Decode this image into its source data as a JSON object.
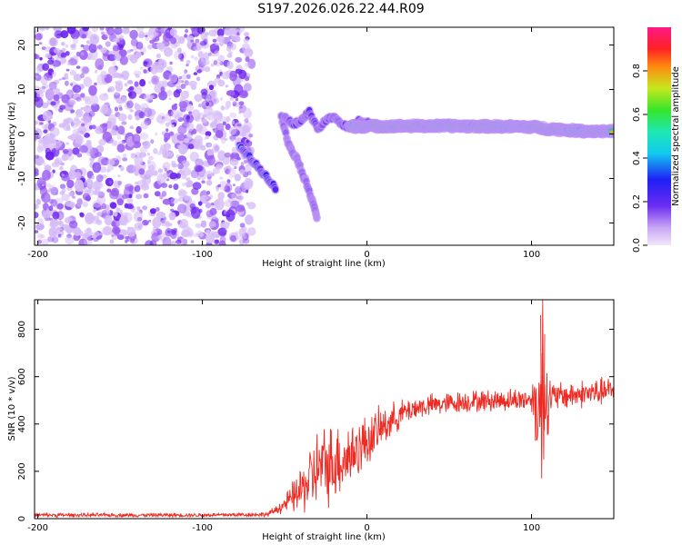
{
  "title": "S197.2026.026.22.44.R09",
  "colors": {
    "snr_line": "#ee2a22",
    "noise_purple": "#7a2cf0",
    "noise_light": "#c9a6f5"
  },
  "chart_data": [
    {
      "type": "heatmap",
      "title": "S197.2026.026.22.44.R09",
      "xlabel": "Height of straight line (km)",
      "ylabel": "Frequency (Hz)",
      "xlim": [
        -202,
        150
      ],
      "ylim": [
        -25,
        24
      ],
      "xticks": [
        -200,
        -100,
        0,
        100
      ],
      "yticks": [
        -20,
        -10,
        0,
        10,
        20
      ],
      "xtick_labels": [
        "-200",
        "-100",
        "0",
        "100"
      ],
      "ytick_labels": [
        "-20",
        "-10",
        "0",
        "10",
        "20"
      ],
      "noise_region_x": [
        -202,
        -70
      ],
      "colorbar": {
        "label": "Normalized spectral amplitude",
        "range": [
          0,
          1
        ],
        "ticks": [
          0.0,
          0.2,
          0.4,
          0.6,
          0.8
        ],
        "tick_labels": [
          "0.0",
          "0.2",
          "0.4",
          "0.6",
          "0.8"
        ]
      },
      "features": [
        {
          "name": "descending-streak-1",
          "points": [
            [
              -77,
              -3
            ],
            [
              -72,
              -5
            ],
            [
              -66,
              -7.5
            ],
            [
              -60,
              -10
            ],
            [
              -55,
              -12.5
            ]
          ],
          "amplitude": 0.45
        },
        {
          "name": "descending-streak-2",
          "points": [
            [
              -52,
              4
            ],
            [
              -48,
              -2
            ],
            [
              -42,
              -6
            ],
            [
              -37,
              -11
            ],
            [
              -32,
              -16
            ],
            [
              -30,
              -20
            ]
          ],
          "amplitude": 0.22
        },
        {
          "name": "wiggle-track",
          "points": [
            [
              -50,
              4
            ],
            [
              -45,
              2
            ],
            [
              -40,
              3
            ],
            [
              -35,
              5
            ],
            [
              -30,
              1
            ],
            [
              -25,
              3
            ],
            [
              -20,
              4
            ],
            [
              -15,
              2
            ],
            [
              -10,
              1.5
            ],
            [
              -5,
              3
            ],
            [
              0,
              2.5
            ],
            [
              5,
              2
            ]
          ],
          "amplitude": 0.3
        },
        {
          "name": "main-track",
          "points": [
            [
              -10,
              1.7
            ],
            [
              20,
              1.8
            ],
            [
              50,
              1.8
            ],
            [
              80,
              1.7
            ],
            [
              100,
              1.6
            ],
            [
              110,
              1.2
            ],
            [
              130,
              0.7
            ],
            [
              150,
              0.6
            ]
          ],
          "amplitude": 0.9
        }
      ]
    },
    {
      "type": "line",
      "xlabel": "Height of straight line (km)",
      "ylabel": "SNR (10 * v/v)",
      "xlim": [
        -202,
        150
      ],
      "ylim": [
        0,
        925
      ],
      "xticks": [
        -200,
        -100,
        0,
        100
      ],
      "yticks": [
        0,
        200,
        400,
        600,
        800
      ],
      "xtick_labels": [
        "-200",
        "-100",
        "0",
        "100"
      ],
      "ytick_labels": [
        "0",
        "200",
        "400",
        "600",
        "800"
      ],
      "series": [
        {
          "name": "SNR",
          "color": "#ee2a22",
          "envelope_x": [
            -202,
            -100,
            -60,
            -50,
            -40,
            -30,
            -20,
            -10,
            0,
            10,
            20,
            30,
            40,
            60,
            80,
            100,
            105,
            108,
            112,
            120,
            150
          ],
          "envelope_mean": [
            15,
            15,
            18,
            60,
            120,
            210,
            240,
            270,
            330,
            390,
            440,
            470,
            480,
            495,
            500,
            505,
            470,
            520,
            510,
            520,
            540
          ],
          "envelope_spread": [
            10,
            10,
            12,
            40,
            120,
            200,
            200,
            170,
            130,
            100,
            70,
            60,
            55,
            55,
            55,
            60,
            350,
            280,
            80,
            70,
            70
          ]
        }
      ]
    }
  ]
}
